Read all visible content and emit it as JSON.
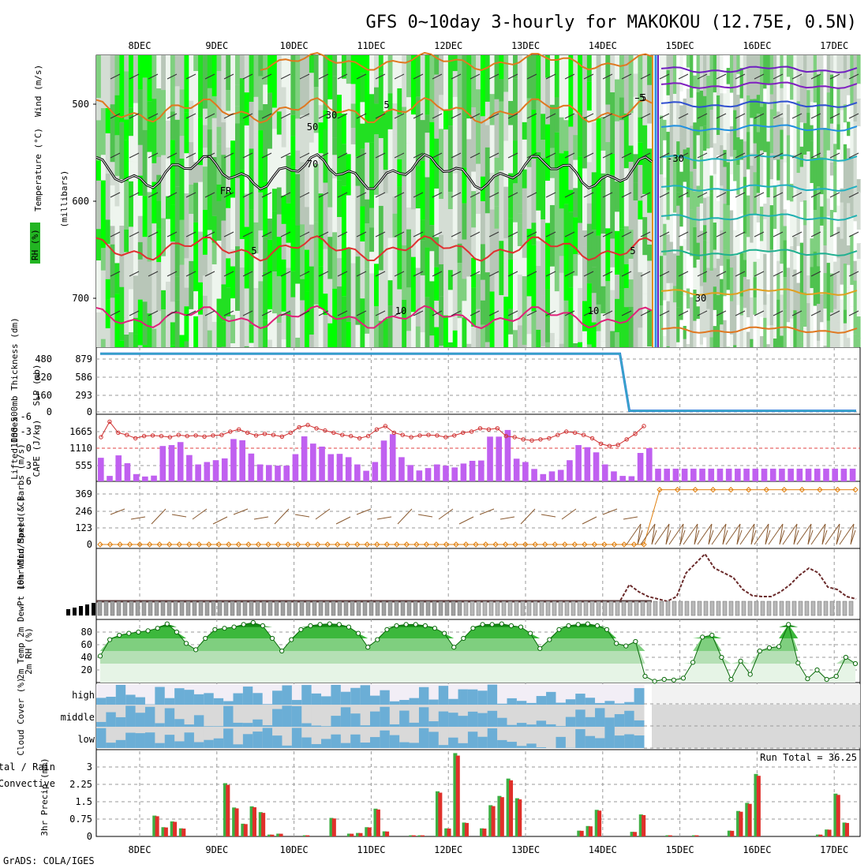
{
  "title": "GFS 0~10day 3-hourly for MAKOKOU (12.75E, 0.5N)",
  "footer": "GrADS: COLA/IGES",
  "run_total": "Run Total = 36.25",
  "colors": {
    "rh_green": "#22b522",
    "bright_green": "#00ff00",
    "purple_bar": "#c060f0",
    "slp_blue": "#2a7fd4",
    "thick_cyan": "#40c0c0",
    "cloud_blue": "#6baed6",
    "cloud_gray": "#d9d9d9",
    "precip_green": "#3cb043",
    "precip_red": "#e0302a",
    "wind_orange": "#e08010",
    "li_red": "#d03030"
  },
  "chart_data": [
    {
      "type": "heatmap",
      "name": "cross-section",
      "ylabel": "(millibars)",
      "legend": [
        "RH (%)",
        "Temperature (°C)",
        "Wind (m/s)"
      ],
      "y_ticks": [
        500,
        600,
        700
      ],
      "x_ticks": [
        "8DEC",
        "9DEC",
        "10DEC",
        "11DEC",
        "12DEC",
        "13DEC",
        "14DEC",
        "15DEC",
        "16DEC",
        "17DEC"
      ],
      "contour_labels": [
        "5",
        "-5",
        "5",
        "5",
        "10",
        "10",
        "-30",
        "30",
        "30",
        "50",
        "70",
        "FR",
        "-5"
      ]
    },
    {
      "type": "line",
      "name": "thickness-slp",
      "ylabel_left": "1000-500mb Thickness (dm)",
      "ylabel_right": "SLP (mb)",
      "left_ticks": [
        "480",
        "320",
        "160",
        "0"
      ],
      "right_ticks": [
        "879",
        "586",
        "293",
        "0"
      ],
      "series": [
        {
          "name": "SLP",
          "values": [
            920,
            920,
            920,
            920,
            920,
            920,
            920,
            920,
            920,
            920,
            920,
            920,
            920,
            920,
            920,
            920,
            920,
            920,
            920,
            920,
            920,
            920,
            920,
            920,
            920,
            920,
            920,
            920,
            920,
            920,
            920,
            920,
            920,
            920,
            920,
            920,
            920,
            920,
            920,
            920,
            920,
            920,
            920,
            920,
            920,
            920,
            920,
            920,
            920,
            920,
            920,
            920,
            920,
            920,
            920,
            920,
            5,
            5,
            5,
            5,
            5,
            5,
            5,
            5,
            5,
            5,
            5,
            5,
            5,
            5,
            5,
            5,
            5,
            5,
            5,
            5,
            5,
            5,
            5,
            5,
            5
          ]
        }
      ]
    },
    {
      "type": "bar",
      "name": "cape-li",
      "ylabel_left": "Lifted Index",
      "ylabel_right": "CAPE (J/kg)",
      "li_ticks": [
        "-6",
        "-3",
        "0",
        "3",
        "6"
      ],
      "cape_ticks": [
        "1665",
        "1110",
        "555"
      ],
      "cape": [
        780,
        180,
        860,
        600,
        240,
        160,
        190,
        1170,
        1200,
        1300,
        870,
        560,
        640,
        700,
        760,
        1400,
        1360,
        920,
        560,
        540,
        520,
        520,
        900,
        1490,
        1250,
        1150,
        900,
        910,
        800,
        560,
        350,
        640,
        1350,
        1560,
        800,
        540,
        360,
        440,
        560,
        520,
        460,
        590,
        680,
        690,
        1480,
        1480,
        1700,
        750,
        640,
        410,
        240,
        330,
        380,
        700,
        1200,
        1130,
        960,
        560,
        330,
        180,
        170,
        940,
        1100,
        420,
        420,
        420,
        420,
        420,
        420,
        420,
        420,
        420,
        420,
        420,
        420,
        420,
        420,
        420,
        420,
        420,
        420,
        420,
        420,
        420,
        420,
        420
      ],
      "li": [
        -2.0,
        -4.8,
        -2.8,
        -2.4,
        -1.8,
        -2.2,
        -2.3,
        -2.2,
        -2.0,
        -2.4,
        -2.2,
        -2.3,
        -2.1,
        -2.3,
        -2.4,
        -3.0,
        -3.4,
        -2.8,
        -2.3,
        -2.6,
        -2.4,
        -2.1,
        -2.8,
        -3.8,
        -4.2,
        -3.6,
        -3.2,
        -2.8,
        -2.4,
        -2.2,
        -1.8,
        -2.2,
        -3.4,
        -4.0,
        -2.8,
        -2.4,
        -2.0,
        -2.3,
        -2.4,
        -2.3,
        -2.0,
        -2.3,
        -2.8,
        -3.0,
        -3.6,
        -3.4,
        -3.6,
        -2.2,
        -2.0,
        -1.6,
        -1.4,
        -1.6,
        -1.8,
        -2.4,
        -3.0,
        -2.8,
        -2.4,
        -1.8,
        -0.8,
        -0.4,
        -0.6,
        -1.6,
        -2.6,
        -4.0
      ]
    },
    {
      "type": "line",
      "name": "wind-10m",
      "ylabel": "10m Wind Speed & Barbs (m/s)",
      "ticks": [
        "369",
        "246",
        "123",
        "0"
      ],
      "values": [
        0,
        0,
        0,
        0,
        0,
        0,
        0,
        0,
        0,
        0,
        0,
        0,
        0,
        0,
        0,
        0,
        0,
        0,
        0,
        0,
        0,
        0,
        0,
        0,
        0,
        0,
        0,
        0,
        0,
        0,
        0,
        0,
        0,
        0,
        0,
        0,
        0,
        0,
        0,
        0,
        0,
        0,
        0,
        0,
        0,
        0,
        0,
        0,
        0,
        0,
        0,
        0,
        0,
        0,
        0,
        0,
        400,
        400,
        400,
        400,
        400,
        400,
        400,
        400,
        400,
        400,
        400,
        400
      ]
    },
    {
      "type": "line",
      "name": "temp-2m",
      "ylabel": "2m Temp 2m DewPt (6hr Min/Max) (°C)",
      "series": [
        {
          "name": "Temp",
          "values": [
            0,
            0,
            0,
            0,
            0,
            0,
            0,
            0,
            0,
            0,
            0,
            0,
            0,
            0,
            0,
            0,
            0,
            0,
            0,
            0,
            0,
            0,
            0,
            0,
            0,
            0,
            0,
            0,
            0,
            0,
            0,
            0,
            0,
            0,
            0,
            0,
            0,
            0,
            0,
            0,
            0,
            0,
            0,
            0,
            0,
            0,
            0,
            0,
            0,
            0,
            0,
            0,
            0,
            0,
            0,
            0,
            0.35,
            0.2,
            0.1,
            0.05,
            0.0,
            0.1,
            0.6,
            0.8,
            1.0,
            0.7,
            0.6,
            0.5,
            0.25,
            0.12,
            0.1,
            0.1,
            0.2,
            0.35,
            0.55,
            0.7,
            0.6,
            0.3,
            0.25,
            0.1,
            0.05
          ]
        }
      ]
    },
    {
      "type": "area",
      "name": "rh-2m",
      "ylabel": "2m RH (%)",
      "ticks": [
        "80",
        "60",
        "40",
        "20"
      ],
      "values": [
        42,
        68,
        75,
        78,
        80,
        82,
        86,
        93,
        80,
        62,
        52,
        70,
        84,
        86,
        88,
        92,
        95,
        90,
        70,
        50,
        68,
        84,
        90,
        92,
        93,
        92,
        88,
        78,
        56,
        68,
        84,
        90,
        92,
        92,
        90,
        86,
        78,
        56,
        70,
        86,
        92,
        92,
        93,
        90,
        88,
        78,
        54,
        68,
        84,
        90,
        92,
        93,
        90,
        84,
        62,
        58,
        65,
        10,
        2,
        5,
        4,
        7,
        32,
        72,
        75,
        40,
        5,
        34,
        13,
        50,
        55,
        57,
        92,
        31,
        6,
        20,
        5,
        10,
        40,
        30
      ],
      "ylim": [
        0,
        100
      ]
    },
    {
      "type": "area",
      "name": "cloud-cover",
      "ylabel": "Cloud Cover (%)",
      "levels": [
        "high",
        "middle",
        "low"
      ]
    },
    {
      "type": "bar",
      "name": "precip",
      "ylabel": "3hr Precip (mm)",
      "left_label_top": "tal / Rain",
      "left_label_bottom": "Convective",
      "ticks": [
        "3",
        "2.25",
        "1.5",
        "0.75",
        "0"
      ],
      "ylim": [
        0,
        3.75
      ],
      "values": [
        0,
        0,
        0,
        0,
        0,
        0,
        0.9,
        0.4,
        0.65,
        0.35,
        0,
        0,
        0,
        0,
        2.3,
        1.25,
        0.55,
        1.3,
        1.05,
        0.08,
        0.12,
        0,
        0,
        0.05,
        0,
        0,
        0.8,
        0,
        0.12,
        0.15,
        0.4,
        1.2,
        0.22,
        0,
        0,
        0.05,
        0.05,
        0,
        1.95,
        0.35,
        3.6,
        0.6,
        0,
        0.35,
        1.35,
        1.75,
        2.5,
        1.65,
        0,
        0,
        0,
        0,
        0,
        0,
        0.25,
        0.45,
        1.15,
        0,
        0,
        0,
        0.2,
        0.95,
        0,
        0,
        0.05,
        0,
        0,
        0.05,
        0,
        0,
        0,
        0.25,
        1.1,
        1.45,
        2.7,
        0,
        0,
        0,
        0,
        0,
        0,
        0.08,
        0.3,
        1.85,
        0.6,
        0
      ]
    }
  ]
}
